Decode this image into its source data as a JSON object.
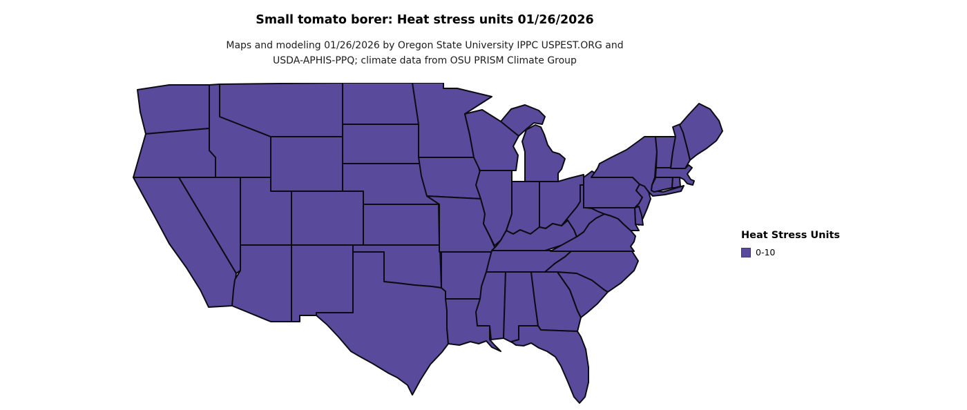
{
  "title": "Small tomato borer: Heat stress units 01/26/2026",
  "subtitle_line1": "Maps and modeling 01/26/2026 by Oregon State University IPPC USPEST.ORG and",
  "subtitle_line2": "USDA-APHIS-PPQ; climate data from OSU PRISM Climate Group",
  "legend": {
    "title": "Heat Stress Units",
    "items": [
      {
        "label": "0-10",
        "color": "#594a9c"
      }
    ]
  },
  "map": {
    "region": "contiguous-united-states",
    "fill_color": "#594a9c",
    "border_color": "#0b0b12"
  }
}
